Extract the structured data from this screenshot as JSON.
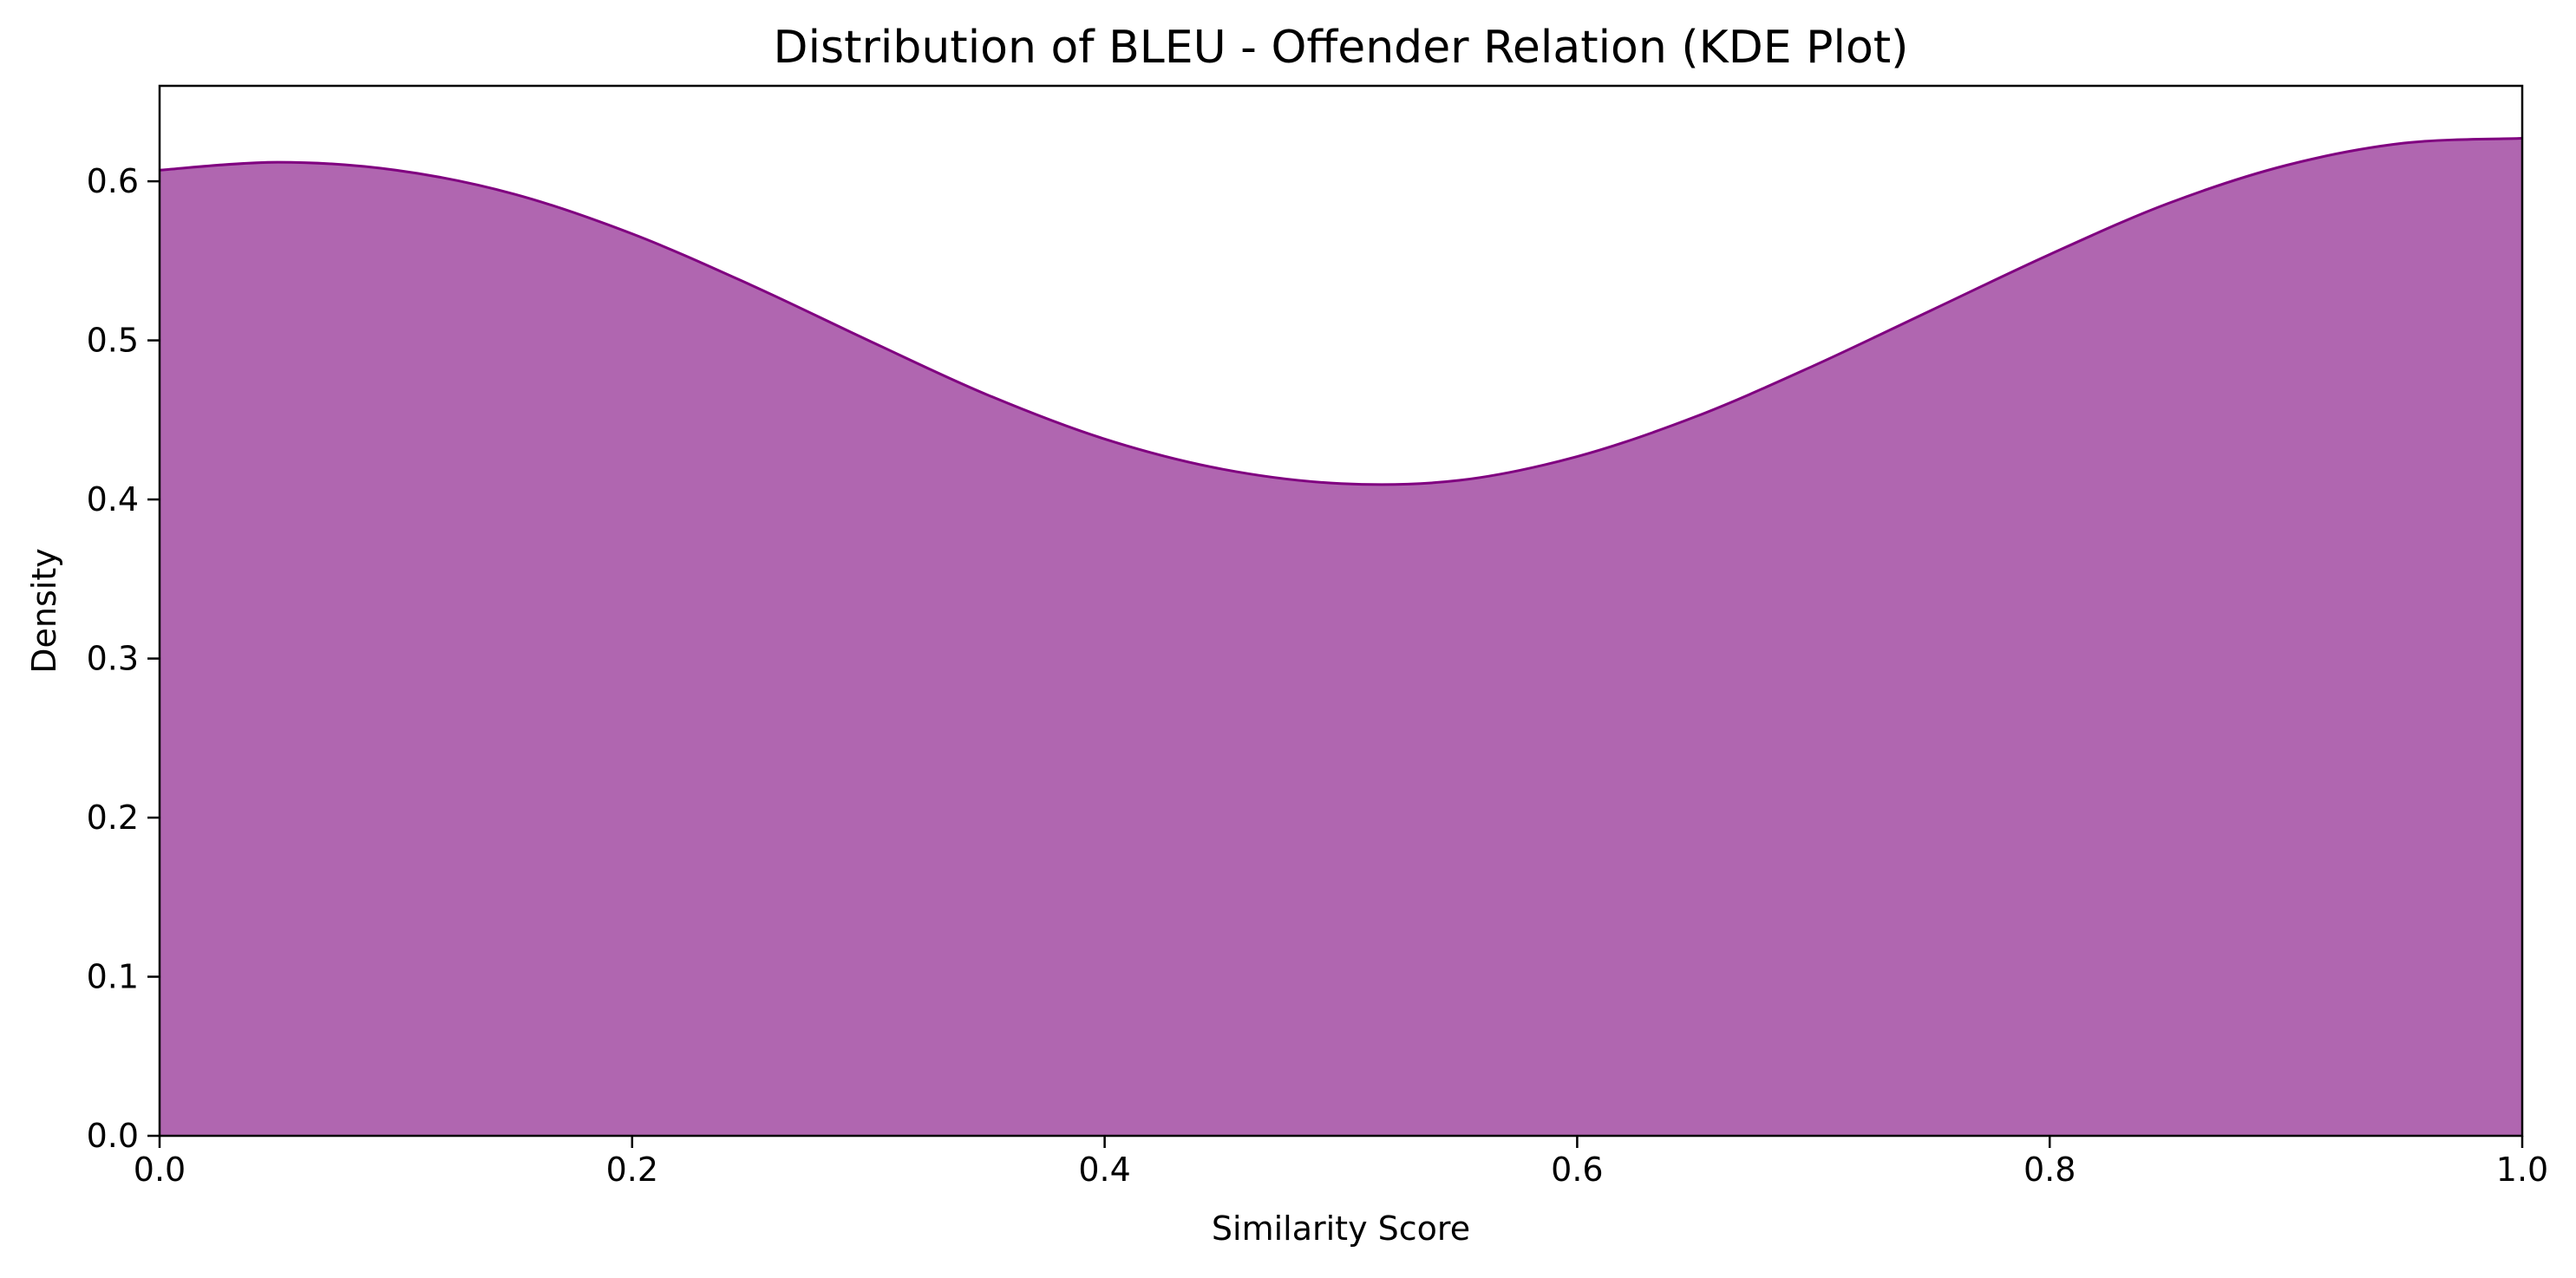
{
  "chart_data": {
    "type": "area",
    "title": "Distribution of BLEU - Offender Relation (KDE Plot)",
    "xlabel": "Similarity Score",
    "ylabel": "Density",
    "xlim": [
      0.0,
      1.0
    ],
    "ylim": [
      0.0,
      0.66
    ],
    "xticks": [
      "0.0",
      "0.2",
      "0.4",
      "0.6",
      "0.8",
      "1.0"
    ],
    "yticks": [
      "0.0",
      "0.1",
      "0.2",
      "0.3",
      "0.4",
      "0.5",
      "0.6"
    ],
    "grid": false,
    "legend": "none",
    "series": [
      {
        "fill_color": "#b066b0",
        "line_color": "#800080",
        "x": [
          0.0,
          0.05,
          0.1,
          0.15,
          0.2,
          0.25,
          0.3,
          0.35,
          0.4,
          0.45,
          0.5,
          0.55,
          0.6,
          0.65,
          0.7,
          0.75,
          0.8,
          0.85,
          0.9,
          0.95,
          1.0
        ],
        "y": [
          0.607,
          0.612,
          0.607,
          0.592,
          0.567,
          0.535,
          0.5,
          0.466,
          0.438,
          0.419,
          0.41,
          0.412,
          0.427,
          0.452,
          0.484,
          0.519,
          0.554,
          0.586,
          0.61,
          0.624,
          0.627
        ]
      }
    ]
  }
}
